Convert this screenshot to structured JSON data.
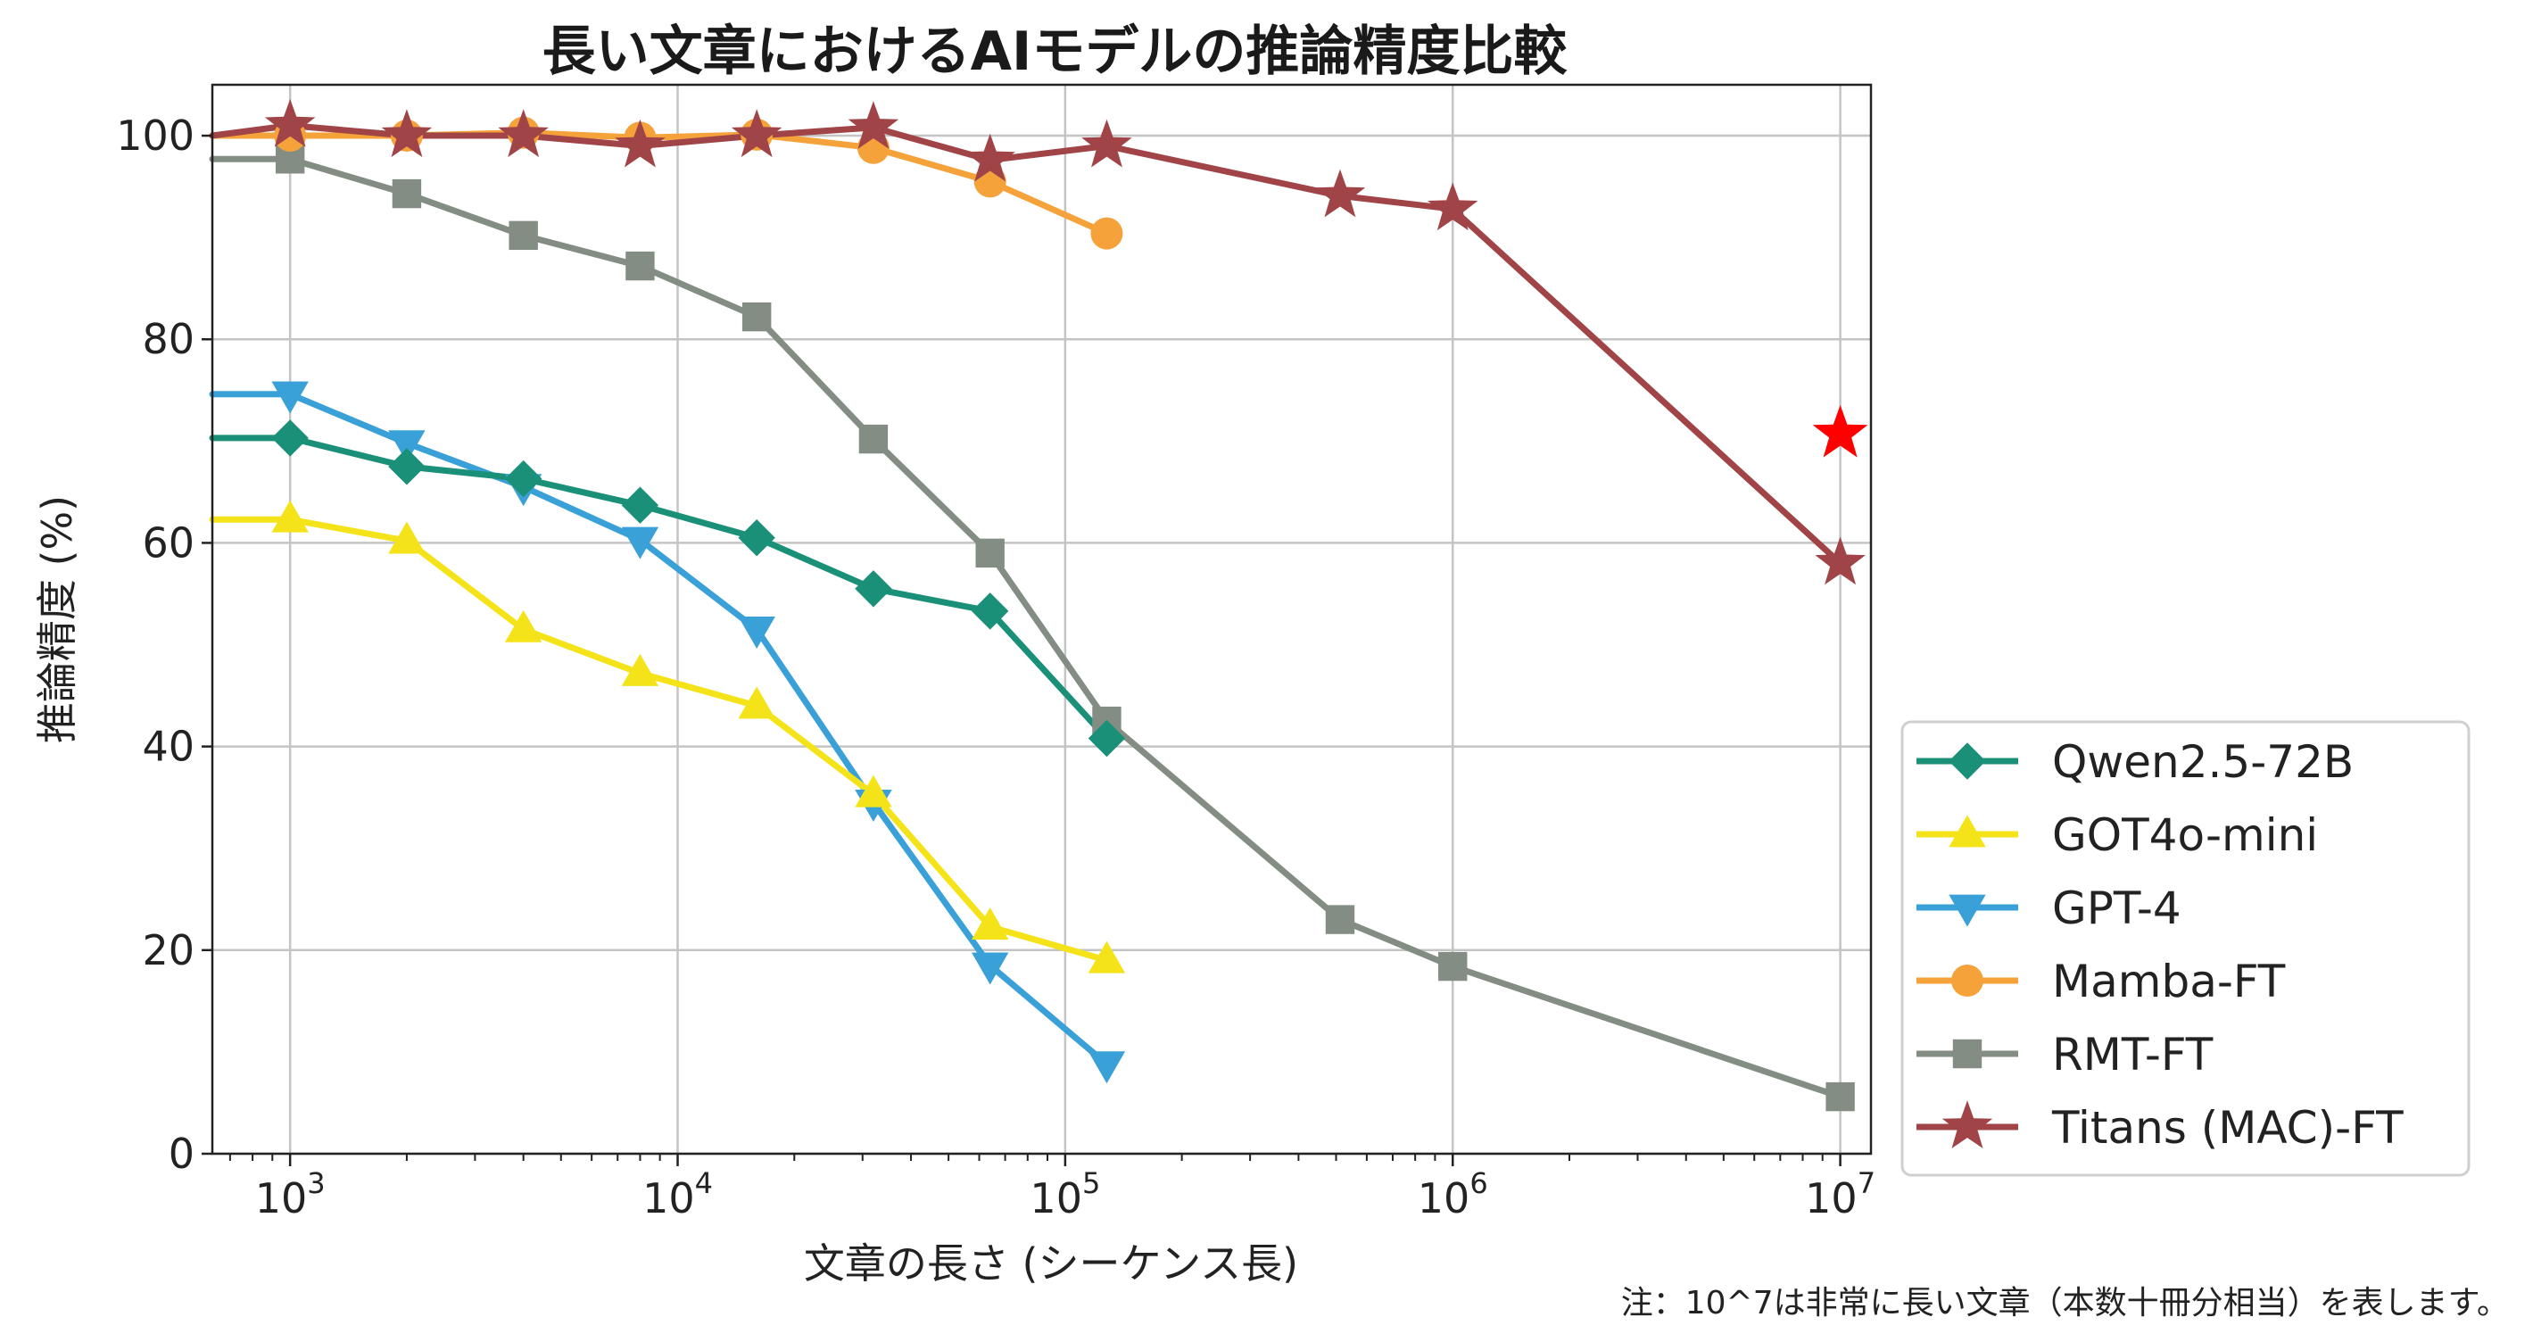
{
  "chart_data": {
    "type": "line",
    "title": "長い文章におけるAIモデルの推論精度比較",
    "xlabel": "文章の長さ (シーケンス長)",
    "ylabel": "推論精度 (%)",
    "x_scale": "log",
    "xlim": [
      630,
      12000000
    ],
    "ylim": [
      0,
      105
    ],
    "x_ticks": [
      {
        "value": 1000,
        "base": "10",
        "exp": "3"
      },
      {
        "value": 10000,
        "base": "10",
        "exp": "4"
      },
      {
        "value": 100000,
        "base": "10",
        "exp": "5"
      },
      {
        "value": 1000000,
        "base": "10",
        "exp": "6"
      },
      {
        "value": 10000000,
        "base": "10",
        "exp": "7"
      }
    ],
    "y_ticks": [
      "0",
      "20",
      "40",
      "60",
      "80",
      "100"
    ],
    "grid": true,
    "legend_position": "lower-right",
    "note": "注：10^7は非常に長い文章（本数十冊分相当）を表します。",
    "series": [
      {
        "name": "Qwen2.5-72B",
        "color": "#1a9078",
        "marker": "diamond",
        "points": [
          [
            630,
            70.3
          ],
          [
            1000,
            70.3
          ],
          [
            2000,
            67.5
          ],
          [
            4000,
            66.3
          ],
          [
            8000,
            63.7
          ],
          [
            16000,
            60.5
          ],
          [
            32000,
            55.5
          ],
          [
            64000,
            53.3
          ],
          [
            128000,
            40.8
          ]
        ]
      },
      {
        "name": "GOT4o-mini",
        "color": "#f5e31a",
        "marker": "triangle-up",
        "points": [
          [
            630,
            62.3
          ],
          [
            1000,
            62.3
          ],
          [
            2000,
            60.2
          ],
          [
            4000,
            51.5
          ],
          [
            8000,
            47.2
          ],
          [
            16000,
            44.0
          ],
          [
            32000,
            35.3
          ],
          [
            64000,
            22.3
          ],
          [
            128000,
            19.0
          ]
        ]
      },
      {
        "name": "GPT-4",
        "color": "#3aa0d8",
        "marker": "triangle-down",
        "points": [
          [
            630,
            74.6
          ],
          [
            1000,
            74.6
          ],
          [
            2000,
            69.8
          ],
          [
            4000,
            65.5
          ],
          [
            8000,
            60.3
          ],
          [
            16000,
            51.5
          ],
          [
            32000,
            34.5
          ],
          [
            64000,
            18.5
          ],
          [
            128000,
            8.8
          ]
        ]
      },
      {
        "name": "Mamba-FT",
        "color": "#f5a23a",
        "marker": "circle",
        "points": [
          [
            630,
            100
          ],
          [
            1000,
            100
          ],
          [
            2000,
            100
          ],
          [
            4000,
            100.3
          ],
          [
            8000,
            99.8
          ],
          [
            16000,
            100.1
          ],
          [
            32000,
            98.8
          ],
          [
            64000,
            95.5
          ],
          [
            128000,
            90.4
          ]
        ]
      },
      {
        "name": "RMT-FT",
        "color": "#838d83",
        "marker": "square",
        "points": [
          [
            630,
            97.7
          ],
          [
            1000,
            97.7
          ],
          [
            2000,
            94.3
          ],
          [
            4000,
            90.2
          ],
          [
            8000,
            87.2
          ],
          [
            16000,
            82.2
          ],
          [
            32000,
            70.2
          ],
          [
            64000,
            59.0
          ],
          [
            128000,
            42.5
          ],
          [
            512000,
            23.0
          ],
          [
            1000000,
            18.4
          ],
          [
            10000000,
            5.6
          ]
        ]
      },
      {
        "name": "Titans (MAC)-FT",
        "color": "#a04448",
        "marker": "star",
        "points": [
          [
            630,
            100
          ],
          [
            1000,
            101
          ],
          [
            2000,
            100
          ],
          [
            4000,
            100
          ],
          [
            8000,
            99
          ],
          [
            16000,
            100
          ],
          [
            32000,
            100.8
          ],
          [
            64000,
            97.6
          ],
          [
            128000,
            99
          ],
          [
            512000,
            94.1
          ],
          [
            1000000,
            92.8
          ],
          [
            10000000,
            58.0
          ]
        ]
      }
    ],
    "annotations": [
      {
        "type": "star-marker",
        "x": 10000000,
        "y": 70.7,
        "color": "#ff0000"
      }
    ]
  }
}
